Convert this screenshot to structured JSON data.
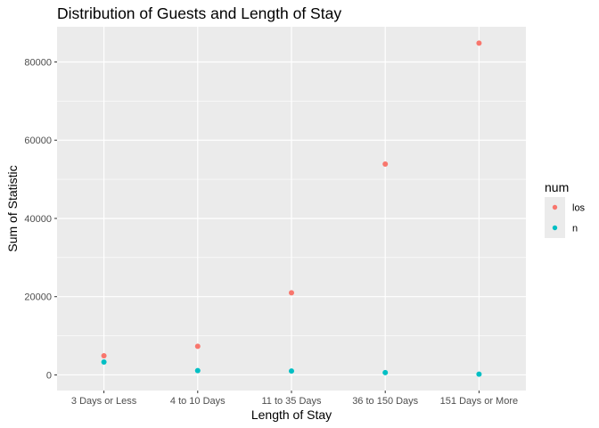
{
  "chart_data": {
    "type": "scatter",
    "title": "Distribution of Guests and Length of Stay",
    "xlabel": "Length of Stay",
    "ylabel": "Sum of Statistic",
    "categories": [
      "3 Days or Less",
      "4 to 10 Days",
      "11 to 35 Days",
      "36 to 150 Days",
      "151 Days or More"
    ],
    "y_ticks": [
      0,
      20000,
      40000,
      60000,
      80000
    ],
    "ylim": [
      -4000,
      89000
    ],
    "grid": true,
    "legend": {
      "title": "num",
      "position": "right"
    },
    "series": [
      {
        "name": "los",
        "color": "#F8766D",
        "values": [
          4900,
          7300,
          21000,
          53900,
          84800
        ]
      },
      {
        "name": "n",
        "color": "#00BFC4",
        "values": [
          3300,
          1100,
          1000,
          600,
          200
        ]
      }
    ]
  }
}
